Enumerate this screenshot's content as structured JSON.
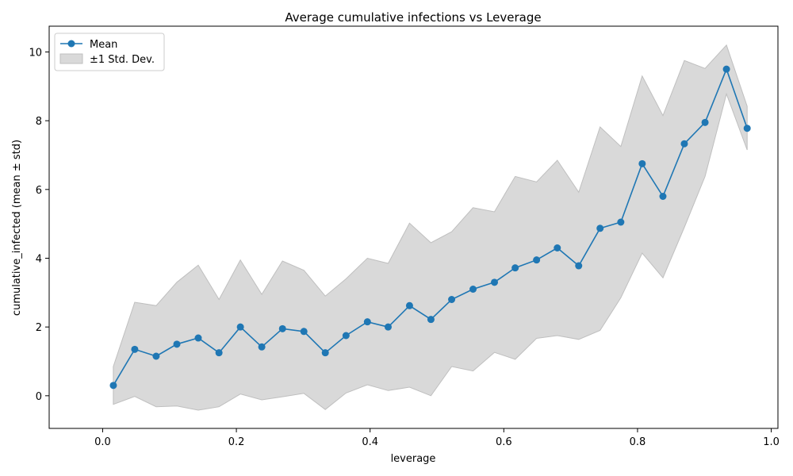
{
  "chart_data": {
    "type": "line",
    "title": "Average cumulative infections vs Leverage",
    "xlabel": "leverage",
    "ylabel": "cumulative_infected (mean ± std)",
    "xlim": [
      -0.08,
      1.01
    ],
    "ylim": [
      -0.95,
      10.75
    ],
    "xticks": [
      "0.0",
      "0.2",
      "0.4",
      "0.6",
      "0.8",
      "1.0"
    ],
    "xtick_values": [
      0.0,
      0.2,
      0.4,
      0.6,
      0.8,
      1.0
    ],
    "yticks": [
      "0",
      "2",
      "4",
      "6",
      "8",
      "10"
    ],
    "ytick_values": [
      0,
      2,
      4,
      6,
      8,
      10
    ],
    "grid": false,
    "legend_position": "top-left",
    "colors": {
      "mean": "#1f77b4",
      "band": "#d9d9d9",
      "band_edge": "#bfbfbf"
    },
    "series": [
      {
        "name": "Mean",
        "x": [
          0.016,
          0.048,
          0.08,
          0.111,
          0.143,
          0.174,
          0.206,
          0.238,
          0.269,
          0.301,
          0.333,
          0.364,
          0.396,
          0.427,
          0.459,
          0.491,
          0.522,
          0.554,
          0.586,
          0.617,
          0.649,
          0.68,
          0.712,
          0.744,
          0.775,
          0.807,
          0.838,
          0.87,
          0.901,
          0.933,
          0.964
        ],
        "values": [
          0.3,
          1.35,
          1.15,
          1.5,
          1.68,
          1.25,
          2.0,
          1.42,
          1.95,
          1.87,
          1.25,
          1.75,
          2.15,
          2.0,
          2.62,
          2.22,
          2.8,
          3.1,
          3.3,
          3.72,
          3.95,
          4.3,
          3.78,
          4.87,
          5.05,
          6.75,
          5.8,
          7.33,
          7.95,
          9.5,
          7.78
        ]
      },
      {
        "name": "±1 Std. Dev.",
        "x": [
          0.016,
          0.048,
          0.08,
          0.111,
          0.143,
          0.174,
          0.206,
          0.238,
          0.269,
          0.301,
          0.333,
          0.364,
          0.396,
          0.427,
          0.459,
          0.491,
          0.522,
          0.554,
          0.586,
          0.617,
          0.649,
          0.68,
          0.712,
          0.744,
          0.775,
          0.807,
          0.838,
          0.87,
          0.901,
          0.933,
          0.964
        ],
        "upper": [
          0.85,
          2.72,
          2.62,
          3.3,
          3.8,
          2.8,
          3.95,
          2.95,
          3.92,
          3.65,
          2.9,
          3.4,
          4.0,
          3.85,
          5.02,
          4.45,
          4.77,
          5.47,
          5.35,
          6.38,
          6.22,
          6.85,
          5.92,
          7.82,
          7.25,
          9.3,
          8.15,
          9.75,
          9.52,
          10.2,
          8.42
        ],
        "lower": [
          -0.25,
          -0.02,
          -0.32,
          -0.3,
          -0.42,
          -0.32,
          0.05,
          -0.12,
          -0.03,
          0.07,
          -0.4,
          0.08,
          0.32,
          0.15,
          0.25,
          0.0,
          0.85,
          0.72,
          1.26,
          1.06,
          1.67,
          1.75,
          1.64,
          1.9,
          2.85,
          4.15,
          3.43,
          4.9,
          6.38,
          8.78,
          7.15
        ]
      }
    ]
  }
}
